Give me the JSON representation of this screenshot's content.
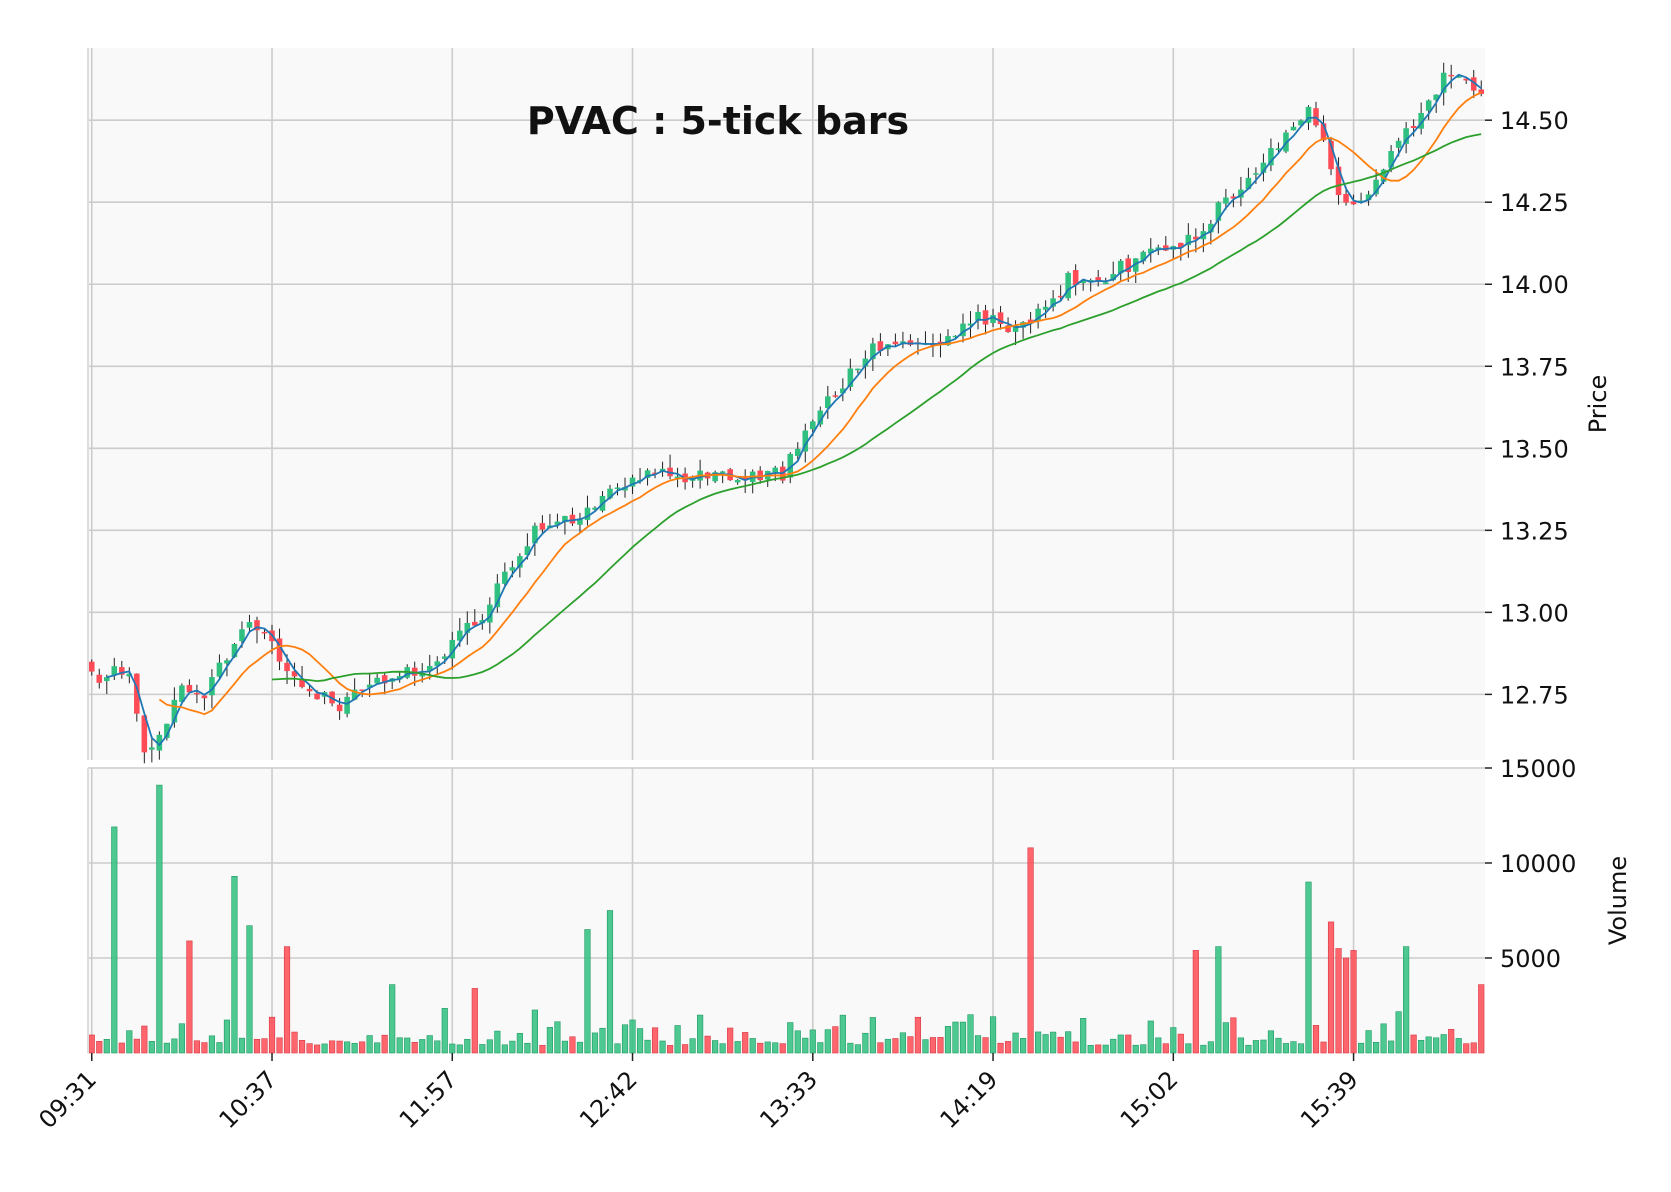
{
  "chart_data": {
    "type": "candlestick",
    "title": "PVAC : 5-tick bars",
    "colors": {
      "up": "#2fbf7f",
      "down": "#ff4b55",
      "ma_short": "#1f77b4",
      "ma_mid": "#ff7f0e",
      "ma_long": "#2ca02c",
      "panel_bg": "#f9f9f9",
      "grid": "#cccccc"
    },
    "price_panel": {
      "ylabel": "Price",
      "ylim": [
        12.55,
        14.72
      ],
      "ticks": [
        "12.75",
        "13.00",
        "13.25",
        "13.50",
        "13.75",
        "14.00",
        "14.25",
        "14.50"
      ],
      "grid": true
    },
    "volume_panel": {
      "ylabel": "Volume",
      "ylim": [
        0,
        15000
      ],
      "ticks": [
        "5000",
        "10000",
        "15000"
      ],
      "grid": true
    },
    "x_ticks": [
      {
        "index": 0,
        "label": "09:31"
      },
      {
        "index": 24,
        "label": "10:37"
      },
      {
        "index": 48,
        "label": "11:57"
      },
      {
        "index": 72,
        "label": "12:42"
      },
      {
        "index": 96,
        "label": "13:33"
      },
      {
        "index": 120,
        "label": "14:19"
      },
      {
        "index": 144,
        "label": "15:02"
      },
      {
        "index": 168,
        "label": "15:39"
      }
    ],
    "n_bars": 186,
    "close_anchors": [
      [
        0,
        12.8
      ],
      [
        5,
        12.82
      ],
      [
        7,
        12.58
      ],
      [
        9,
        12.62
      ],
      [
        12,
        12.78
      ],
      [
        15,
        12.75
      ],
      [
        18,
        12.87
      ],
      [
        21,
        12.97
      ],
      [
        24,
        12.9
      ],
      [
        27,
        12.8
      ],
      [
        30,
        12.76
      ],
      [
        33,
        12.72
      ],
      [
        36,
        12.75
      ],
      [
        40,
        12.82
      ],
      [
        45,
        12.83
      ],
      [
        48,
        12.9
      ],
      [
        52,
        13.0
      ],
      [
        56,
        13.15
      ],
      [
        60,
        13.27
      ],
      [
        64,
        13.29
      ],
      [
        68,
        13.33
      ],
      [
        72,
        13.43
      ],
      [
        76,
        13.42
      ],
      [
        80,
        13.41
      ],
      [
        84,
        13.42
      ],
      [
        88,
        13.41
      ],
      [
        92,
        13.42
      ],
      [
        95,
        13.55
      ],
      [
        98,
        13.65
      ],
      [
        102,
        13.75
      ],
      [
        106,
        13.84
      ],
      [
        110,
        13.8
      ],
      [
        114,
        13.85
      ],
      [
        118,
        13.91
      ],
      [
        122,
        13.86
      ],
      [
        126,
        13.91
      ],
      [
        130,
        14.01
      ],
      [
        134,
        14.01
      ],
      [
        138,
        14.06
      ],
      [
        142,
        14.1
      ],
      [
        145,
        14.1
      ],
      [
        148,
        14.18
      ],
      [
        152,
        14.28
      ],
      [
        156,
        14.38
      ],
      [
        160,
        14.48
      ],
      [
        162,
        14.55
      ],
      [
        164,
        14.45
      ],
      [
        166,
        14.28
      ],
      [
        168,
        14.24
      ],
      [
        170,
        14.25
      ],
      [
        172,
        14.35
      ],
      [
        176,
        14.5
      ],
      [
        180,
        14.62
      ],
      [
        183,
        14.63
      ],
      [
        185,
        14.58
      ]
    ],
    "volume_spikes": [
      [
        3,
        11900
      ],
      [
        9,
        14100
      ],
      [
        13,
        5900
      ],
      [
        19,
        9300
      ],
      [
        21,
        6700
      ],
      [
        26,
        5600
      ],
      [
        40,
        3600
      ],
      [
        51,
        3400
      ],
      [
        66,
        6500
      ],
      [
        69,
        7500
      ],
      [
        125,
        10800
      ],
      [
        147,
        5400
      ],
      [
        150,
        5600
      ],
      [
        162,
        9000
      ],
      [
        165,
        6900
      ],
      [
        166,
        5500
      ],
      [
        167,
        5000
      ],
      [
        168,
        5400
      ],
      [
        175,
        5600
      ],
      [
        185,
        3600
      ]
    ],
    "moving_averages": [
      {
        "period": 3,
        "color": "#1f77b4"
      },
      {
        "period": 10,
        "color": "#ff7f0e"
      },
      {
        "period": 25,
        "color": "#2ca02c"
      }
    ]
  }
}
